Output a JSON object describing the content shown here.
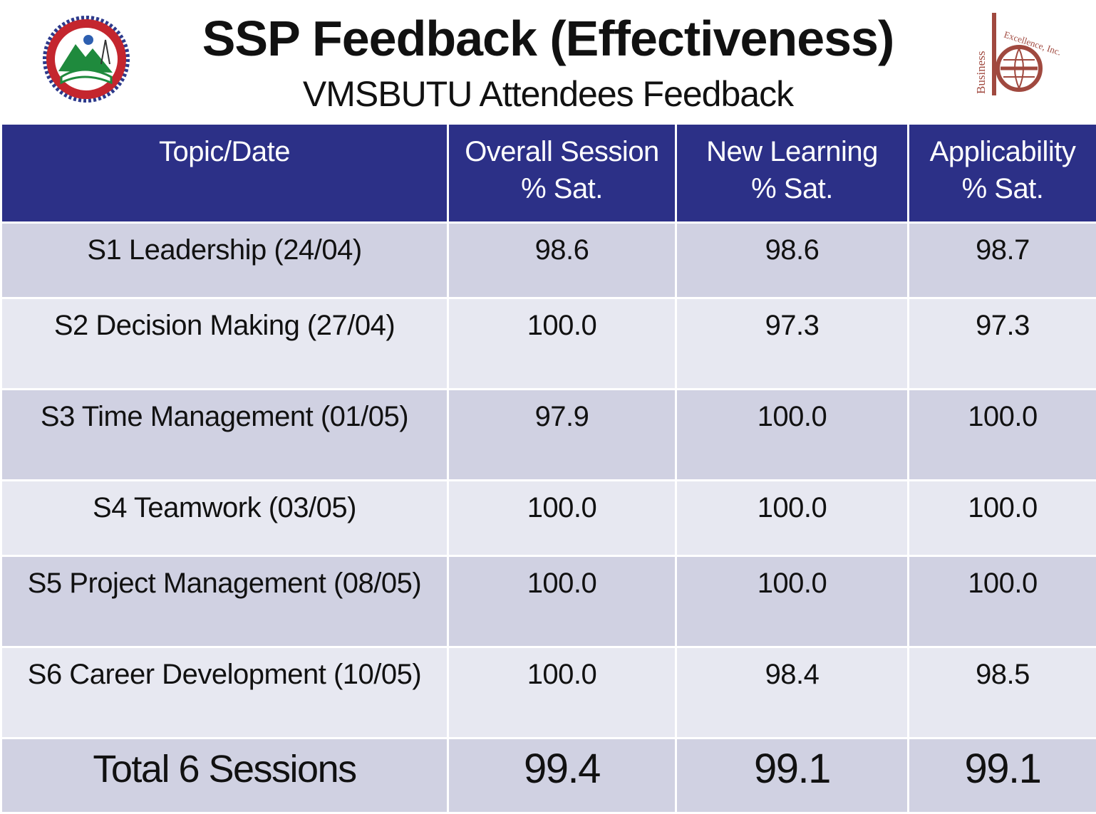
{
  "header": {
    "title": "SSP Feedback (Effectiveness)",
    "subtitle": "VMSBUTU Attendees Feedback",
    "logo_right_text": "Business Excellence, Inc."
  },
  "table": {
    "columns": [
      {
        "line1": "Topic/Date",
        "line2": ""
      },
      {
        "line1": "Overall Session",
        "line2": "% Sat."
      },
      {
        "line1": "New Learning",
        "line2": "% Sat."
      },
      {
        "line1": "Applicability",
        "line2": "% Sat."
      }
    ],
    "rows": [
      {
        "topic": "S1 Leadership (24/04)",
        "overall": "98.6",
        "new_learning": "98.6",
        "applicability": "98.7"
      },
      {
        "topic": "S2 Decision Making (27/04)",
        "overall": "100.0",
        "new_learning": "97.3",
        "applicability": "97.3"
      },
      {
        "topic": "S3 Time Management (01/05)",
        "overall": "97.9",
        "new_learning": "100.0",
        "applicability": "100.0"
      },
      {
        "topic": "S4 Teamwork (03/05)",
        "overall": "100.0",
        "new_learning": "100.0",
        "applicability": "100.0"
      },
      {
        "topic": "S5 Project Management (08/05)",
        "overall": "100.0",
        "new_learning": "100.0",
        "applicability": "100.0"
      },
      {
        "topic": "S6 Career Development (10/05)",
        "overall": "100.0",
        "new_learning": "98.4",
        "applicability": "98.5"
      }
    ],
    "total": {
      "label": "Total 6 Sessions",
      "overall": "99.4",
      "new_learning": "99.1",
      "applicability": "99.1"
    }
  },
  "colors": {
    "header_bg": "#2c3087",
    "row_band_a": "#d0d1e2",
    "row_band_b": "#e7e8f1",
    "logo_right": "#a0493f"
  }
}
